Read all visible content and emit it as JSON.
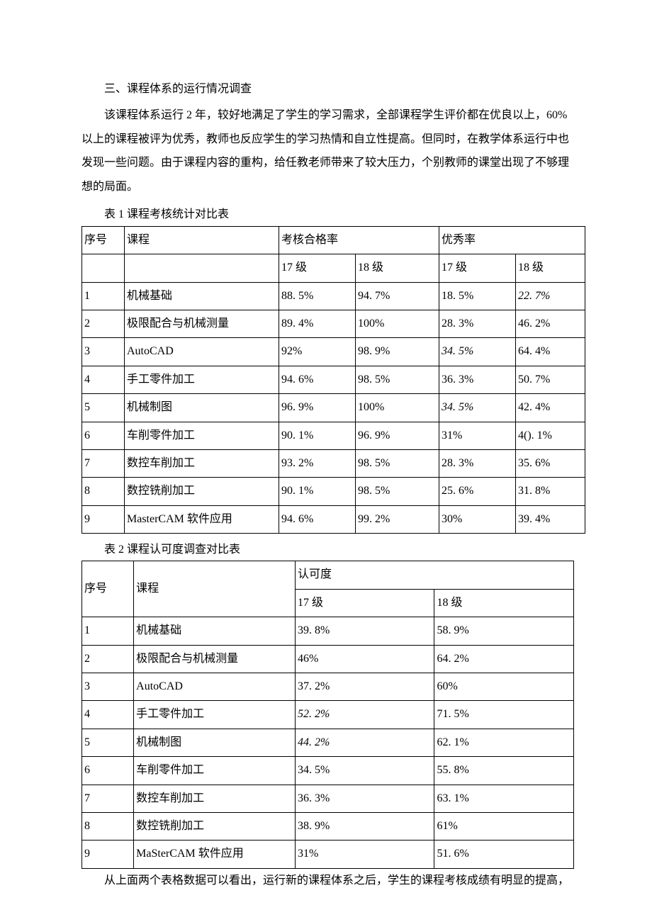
{
  "heading": "三、课程体系的运行情况调查",
  "paragraph": "该课程体系运行 2 年，较好地满足了学生的学习需求，全部课程学生评价都在优良以上，60%以上的课程被评为优秀，教师也反应学生的学习热情和自立性提高。但同时，在教学体系运行中也发现一些问题。由于课程内容的重构，给任教老师带来了较大压力，个别教师的课堂出现了不够理想的局面。",
  "table1": {
    "caption": "表 1 课程考核统计对比表",
    "header": {
      "col_seq": "序号",
      "col_course": "课程",
      "col_pass": "考核合格率",
      "col_excellent": "优秀率",
      "sub_17": "17 级",
      "sub_18": "18 级"
    },
    "rows": [
      {
        "seq": "1",
        "course": "机械基础",
        "pass17": "88. 5%",
        "pass18": "94. 7%",
        "exc17": "18. 5%",
        "exc18": "22. 7%",
        "exc18_italic": true
      },
      {
        "seq": "2",
        "course": "极限配合与机械测量",
        "pass17": "89. 4%",
        "pass18": "100%",
        "exc17": "28. 3%",
        "exc18": "46. 2%"
      },
      {
        "seq": "3",
        "course": "AutoCAD",
        "pass17": "92%",
        "pass18": "98. 9%",
        "exc17": "34. 5%",
        "exc17_italic": true,
        "exc18": "64. 4%"
      },
      {
        "seq": "4",
        "course": "手工零件加工",
        "pass17": "94. 6%",
        "pass18": "98. 5%",
        "exc17": "36. 3%",
        "exc18": "50. 7%"
      },
      {
        "seq": "5",
        "course": "机械制图",
        "pass17": "96. 9%",
        "pass18": "100%",
        "exc17": "34. 5%",
        "exc17_italic": true,
        "exc18": "42. 4%"
      },
      {
        "seq": "6",
        "course": "车削零件加工",
        "pass17": "90. 1%",
        "pass18": "96. 9%",
        "exc17": "31%",
        "exc18": "4(). 1%"
      },
      {
        "seq": "7",
        "course": "数控车削加工",
        "pass17": "93. 2%",
        "pass18": "98. 5%",
        "exc17": "28. 3%",
        "exc18": "35. 6%"
      },
      {
        "seq": "8",
        "course": "数控铣削加工",
        "pass17": "90. 1%",
        "pass18": "98. 5%",
        "exc17": "25. 6%",
        "exc18": "31. 8%"
      },
      {
        "seq": "9",
        "course": "MasterCAM 软件应用",
        "pass17": "94. 6%",
        "pass18": "99. 2%",
        "exc17": "30%",
        "exc18": "39. 4%"
      }
    ]
  },
  "table2": {
    "caption": "表 2 课程认可度调查对比表",
    "header": {
      "col_seq": "序号",
      "col_course": "课程",
      "col_approval": "认可度",
      "sub_17": "17 级",
      "sub_18": "18 级"
    },
    "rows": [
      {
        "seq": "1",
        "course": "机械基础",
        "v17": "39. 8%",
        "v18": "58. 9%"
      },
      {
        "seq": "2",
        "course": "极限配合与机械测量",
        "v17": "46%",
        "v18": "64. 2%"
      },
      {
        "seq": "3",
        "course": "AutoCAD",
        "v17": "37. 2%",
        "v18": "60%"
      },
      {
        "seq": "4",
        "course": "手工零件加工",
        "v17": "52. 2%",
        "v17_italic": true,
        "v18": "71. 5%"
      },
      {
        "seq": "5",
        "course": "机械制图",
        "v17": "44. 2%",
        "v17_italic": true,
        "v18": "62. 1%"
      },
      {
        "seq": "6",
        "course": "车削零件加工",
        "v17": "34. 5%",
        "v18": "55. 8%"
      },
      {
        "seq": "7",
        "course": "数控车削加工",
        "v17": "36. 3%",
        "v18": "63. 1%"
      },
      {
        "seq": "8",
        "course": "数控铣削加工",
        "v17": "38. 9%",
        "v18": "61%"
      },
      {
        "seq": "9",
        "course": "MaSterCAM 软件应用",
        "v17": "31%",
        "v18": "51. 6%"
      }
    ]
  },
  "footer": "从上面两个表格数据可以看出，运行新的课程体系之后，学生的课程考核成绩有明显的提高，"
}
